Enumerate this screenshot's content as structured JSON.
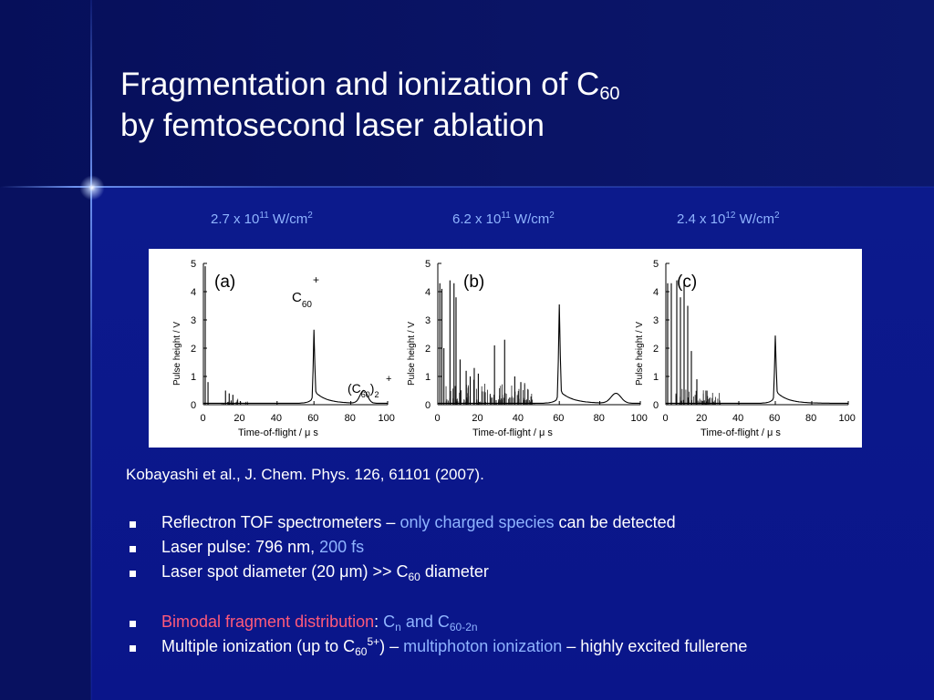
{
  "title": {
    "line1": "Fragmentation and ionization of C",
    "line1_sub": "60",
    "line2": "by femtosecond laser ablation"
  },
  "intensities": [
    {
      "base": "2.7 x 10",
      "exp": "11",
      "unit": " W/cm",
      "unit_exp": "2"
    },
    {
      "base": "6.2 x 10",
      "exp": "11",
      "unit": " W/cm",
      "unit_exp": "2"
    },
    {
      "base": "2.4 x 10",
      "exp": "12",
      "unit": " W/cm",
      "unit_exp": "2"
    }
  ],
  "figure": {
    "panels": [
      {
        "label": "(a)",
        "annotations": [
          "C60+",
          "(C60)2+"
        ]
      },
      {
        "label": "(b)"
      },
      {
        "label": "(c)"
      }
    ],
    "ylabel": "Pulse height / V",
    "xlabel": "Time-of-flight / μ s",
    "yticks": [
      "0",
      "1",
      "2",
      "3",
      "4",
      "5"
    ],
    "xticks": [
      "0",
      "20",
      "40",
      "60",
      "80",
      "100"
    ],
    "annotation_text": {
      "c60_main": "C",
      "c60_sub": "60",
      "c60_sup": "+",
      "dimer_main": "(C",
      "dimer_sub": "60",
      "dimer_close": ")",
      "dimer_sub2": "2",
      "dimer_sup": "+"
    }
  },
  "citation": "Kobayashi et al., J. Chem. Phys. 126, 61101 (2007).",
  "bullets": {
    "b1": {
      "a": "Reflectron TOF spectrometers – ",
      "b": "only charged species",
      "c": " can be detected"
    },
    "b2": {
      "a": "Laser pulse: 796 nm, ",
      "b": "200 fs"
    },
    "b3": {
      "a": "Laser spot diameter (20 μm) >> C",
      "sub": "60",
      "c": " diameter"
    },
    "b4": {
      "a": "Bimodal fragment distribution",
      "b": ": ",
      "c": "C",
      "c_sub": "n",
      "d": " and ",
      "e": "C",
      "e_sub": "60-2n"
    },
    "b5": {
      "a": "Multiple ionization (up to C",
      "sub": "60",
      "sup": "5+",
      "b": ") – ",
      "c": "multiphoton ionization",
      "d": " – highly excited fullerene"
    }
  },
  "colors": {
    "background": "#0a1366",
    "title": "#ffffff",
    "highlight": "#8fb4ff",
    "accent_red": "#ff5a7a"
  }
}
